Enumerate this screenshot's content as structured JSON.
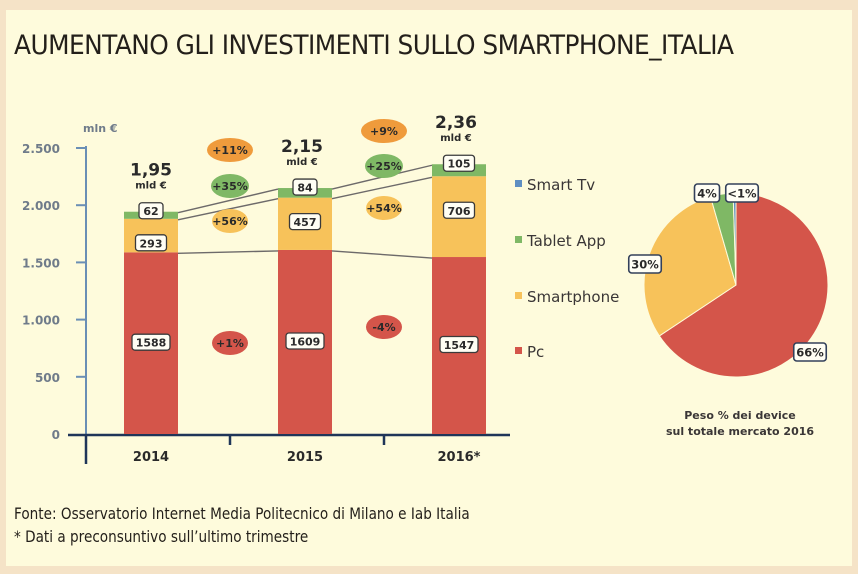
{
  "title": "AUMENTANO GLI INVESTIMENTI SULLO SMARTPHONE_ITALIA",
  "footer": {
    "source": "Fonte: Osservatorio Internet Media Politecnico di Milano e Iab Italia",
    "note": "* Dati a preconsuntivo sull’ultimo trimestre"
  },
  "colors": {
    "pc": "#d4554a",
    "smartphone": "#f7c25a",
    "tablet_app": "#7fb865",
    "smart_tv": "#5f8fc2",
    "axis_y": "#6a8fb5",
    "axis_x": "#1f3558",
    "tick_label": "#6f7b8a",
    "growth_total": "#ef9b3c"
  },
  "chart_data": [
    {
      "type": "bar",
      "stacked": true,
      "ylabel": "mln €",
      "ylim": [
        0,
        2500
      ],
      "yticks": [
        0,
        500,
        1000,
        1500,
        2000,
        2500
      ],
      "ytick_labels": [
        "0",
        "500",
        "1.000",
        "1.500",
        "2.000",
        "2.500"
      ],
      "categories": [
        "2014",
        "2015",
        "2016*"
      ],
      "series": [
        {
          "name": "Pc",
          "key": "pc",
          "values": [
            1588,
            1609,
            1547
          ]
        },
        {
          "name": "Smartphone",
          "key": "smartphone",
          "values": [
            293,
            457,
            706
          ]
        },
        {
          "name": "Tablet App",
          "key": "tablet_app",
          "values": [
            62,
            84,
            105
          ]
        },
        {
          "name": "Smart Tv",
          "key": "smart_tv",
          "values": [
            0,
            0,
            0
          ]
        }
      ],
      "totals": [
        {
          "value": "1,95",
          "unit": "mld €"
        },
        {
          "value": "2,15",
          "unit": "mld €"
        },
        {
          "value": "2,36",
          "unit": "mld €"
        }
      ],
      "growth": [
        {
          "between": "2014-2015",
          "total": "+11%",
          "tablet_app": "+35%",
          "smartphone": "+56%",
          "pc": "+1%"
        },
        {
          "between": "2015-2016*",
          "total": "+9%",
          "tablet_app": "+25%",
          "smartphone": "+54%",
          "pc": "-4%"
        }
      ],
      "legend": [
        "Smart Tv",
        "Tablet App",
        "Smartphone",
        "Pc"
      ],
      "legend_position": "right",
      "grid": false
    },
    {
      "type": "pie",
      "title": "Peso % dei device sul totale mercato 2016",
      "slices": [
        {
          "name": "Pc",
          "key": "pc",
          "value": 66,
          "label": "66%"
        },
        {
          "name": "Smartphone",
          "key": "smartphone",
          "value": 30,
          "label": "30%"
        },
        {
          "name": "Tablet App",
          "key": "tablet_app",
          "value": 4,
          "label": "4%"
        },
        {
          "name": "Smart Tv",
          "key": "smart_tv",
          "value": 0.5,
          "label": "<1%"
        }
      ]
    }
  ],
  "pie_caption": {
    "line1": "Peso % dei device",
    "line2": "sul totale mercato 2016"
  }
}
